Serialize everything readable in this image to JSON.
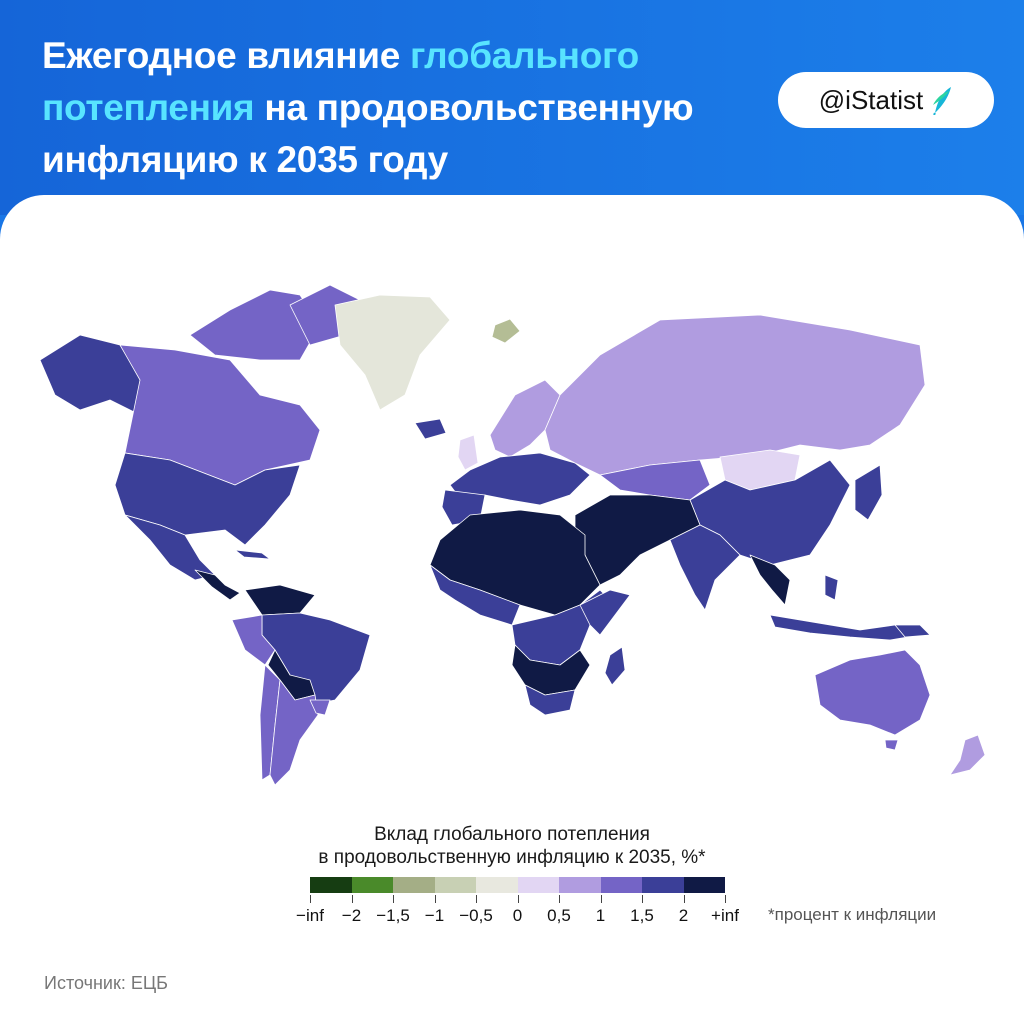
{
  "header": {
    "title_part1": "Ежегодное влияние ",
    "title_highlight1": "глобального потепления",
    "title_part2": " на продовольственную инфляцию к 2035 году",
    "badge_text": "@iStatist"
  },
  "legend": {
    "title_line1": "Вклад глобального потепления",
    "title_line2": "в продовольственную инфляцию к 2035, %*",
    "ticks": [
      "−inf",
      "−2",
      "−1,5",
      "−1",
      "−0,5",
      "0",
      "0,5",
      "1",
      "1,5",
      "2",
      "+inf"
    ],
    "colors": [
      "#163d12",
      "#4a8a2a",
      "#a4ae86",
      "#c8d0b4",
      "#e8e8df",
      "#e2d6f3",
      "#b09ce0",
      "#7464c6",
      "#3b3f98",
      "#101a45"
    ],
    "note": "*процент к инфляции"
  },
  "source": "Источник: ЕЦБ",
  "map_colors": {
    "ocean": "#ffffff",
    "greenland": "#e4e6da",
    "svalbard": "#b4bd95",
    "very_light": "#e2d6f3",
    "light": "#b09ce0",
    "mid": "#7464c6",
    "dark": "#3b3f98",
    "darkest": "#101a45"
  }
}
